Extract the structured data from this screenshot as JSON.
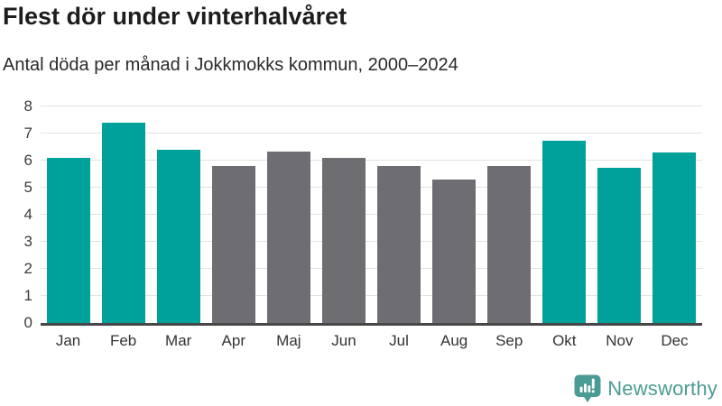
{
  "header": {
    "title": "Flest dör under vinterhalvåret",
    "subtitle": "Antal döda per månad i Jokkmokks kommun, 2000–2024"
  },
  "chart_data": {
    "type": "bar",
    "title": "Flest dör under vinterhalvåret",
    "subtitle": "Antal döda per månad i Jokkmokks kommun, 2000–2024",
    "categories": [
      "Jan",
      "Feb",
      "Mar",
      "Apr",
      "Maj",
      "Jun",
      "Jul",
      "Aug",
      "Sep",
      "Okt",
      "Nov",
      "Dec"
    ],
    "values": [
      6.1,
      7.4,
      6.4,
      5.8,
      6.35,
      6.1,
      5.8,
      5.3,
      5.8,
      6.75,
      5.75,
      6.3
    ],
    "highlighted_categories": [
      "Jan",
      "Feb",
      "Mar",
      "Okt",
      "Nov",
      "Dec"
    ],
    "xlabel": "",
    "ylabel": "",
    "ylim": [
      0,
      8
    ],
    "yticks": [
      0,
      1,
      2,
      3,
      4,
      5,
      6,
      7,
      8
    ],
    "grid": true,
    "legend": "none",
    "colors": {
      "highlight": "#00a19b",
      "muted": "#6e6e72",
      "gridline": "#e2e2e2",
      "axis_line": "#474747",
      "tick_label": "#3b3b3b"
    }
  },
  "footer": {
    "brand": "Newsworthy",
    "brand_color": "#4b9b95",
    "logo_icon": "newsworthy-bar-chart-bubble-icon"
  }
}
